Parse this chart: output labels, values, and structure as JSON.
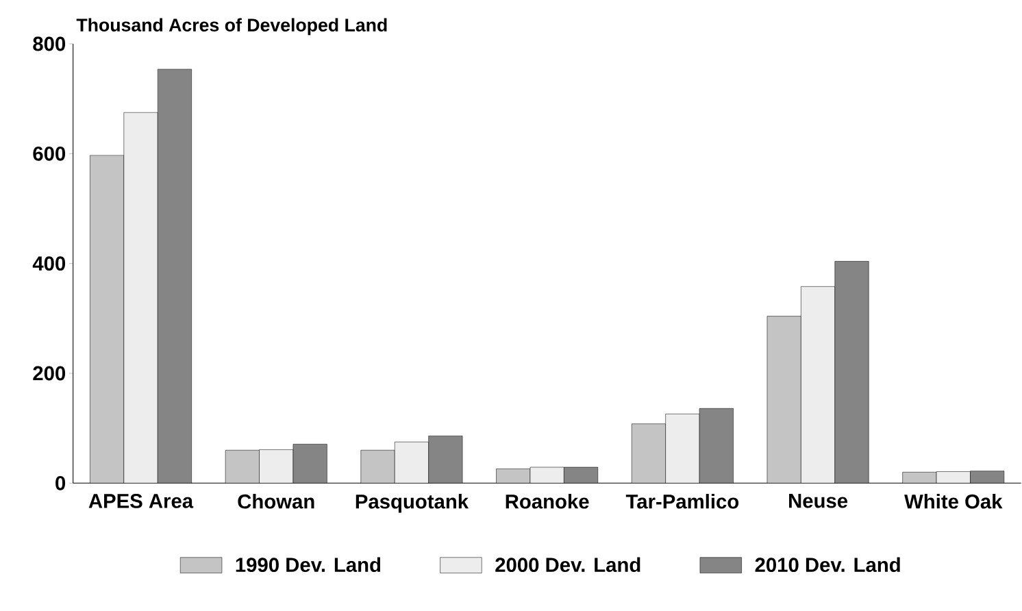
{
  "chart_data": {
    "type": "bar",
    "ylabel": "Thousand Acres of Developed Land",
    "categories": [
      "APES Area",
      "Chowan",
      "Pasquotank",
      "Roanoke",
      "Tar-Pamlico",
      "Neuse",
      "White Oak"
    ],
    "series": [
      {
        "name": "1990 Dev. Land",
        "color": "#c4c4c4",
        "values": [
          597,
          60,
          60,
          26,
          108,
          304,
          20
        ]
      },
      {
        "name": "2000 Dev. Land",
        "color": "#ededed",
        "values": [
          675,
          61,
          75,
          29,
          126,
          358,
          21
        ]
      },
      {
        "name": "2010 Dev. Land",
        "color": "#858585",
        "values": [
          754,
          71,
          86,
          29,
          136,
          404,
          22
        ]
      }
    ],
    "ylim": [
      0,
      800
    ],
    "yticks": [
      0,
      200,
      400,
      600,
      800
    ],
    "grid": false,
    "legend": "bottom"
  }
}
